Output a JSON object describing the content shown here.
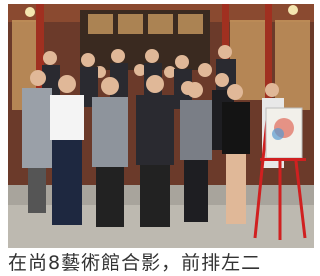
{
  "caption": "在尚8藝術館合影，前排左二"
}
